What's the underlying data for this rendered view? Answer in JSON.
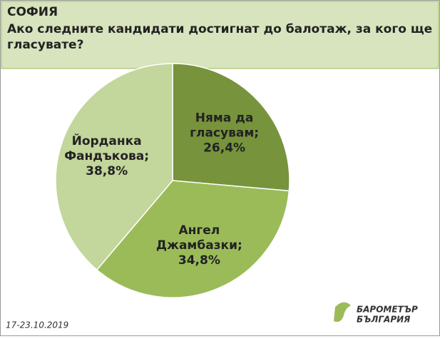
{
  "chart_data": {
    "type": "pie",
    "title": "СОФИЯ",
    "subtitle": "Ако следните кандидати достигнат до балотаж, за кого ще гласувате?",
    "categories": [
      "Няма да гласувам;",
      "Ангел Джамбазки;",
      "Йорданка Фандъкова;"
    ],
    "values": [
      26.4,
      34.8,
      38.8
    ],
    "value_labels": [
      "26,4%",
      "34,8%",
      "38,8%"
    ],
    "colors": [
      "#77933c",
      "#9bbb59",
      "#c3d69b"
    ]
  },
  "footer": {
    "date": "17-23.10.2019",
    "logo_top": "БАРОМЕТЪР",
    "logo_bottom": "БЪЛГАРИЯ"
  }
}
